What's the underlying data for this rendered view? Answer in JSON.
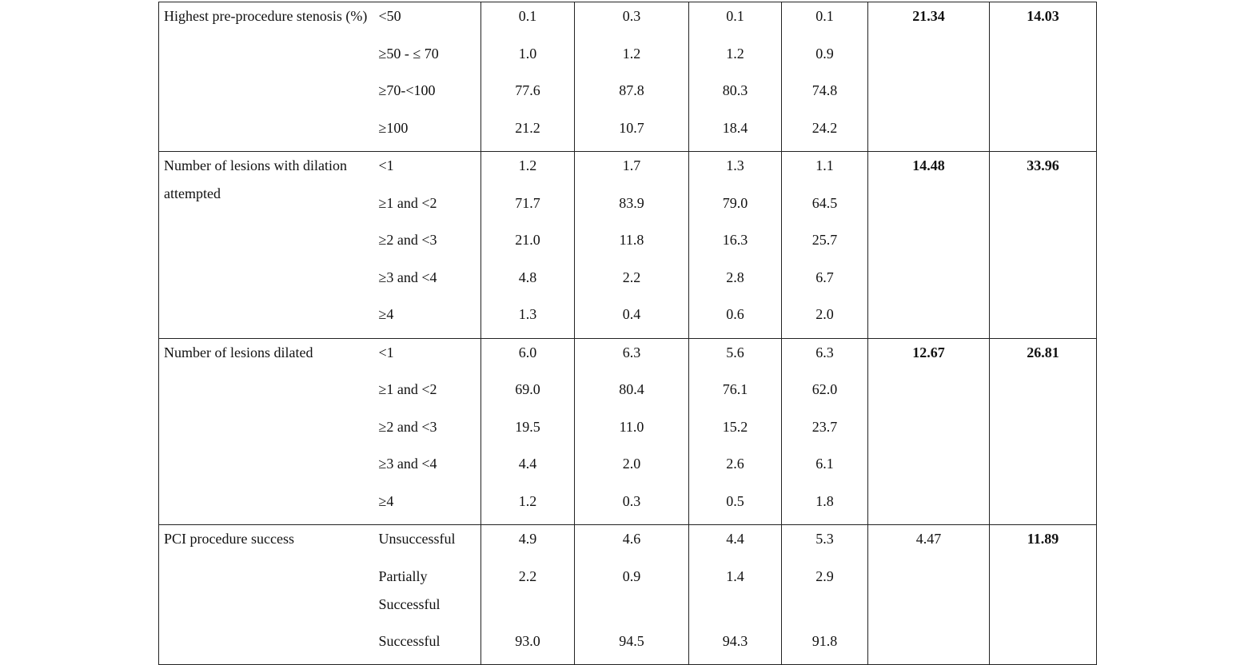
{
  "sections": [
    {
      "label": "Highest pre-procedure stenosis (%)",
      "stat1": "21.34",
      "stat1_bold": true,
      "stat2": "14.03",
      "stat2_bold": true,
      "rows": [
        {
          "level": "<50",
          "v": [
            "0.1",
            "0.3",
            "0.1",
            "0.1"
          ]
        },
        {
          "level": "≥50 - ≤ 70",
          "v": [
            "1.0",
            "1.2",
            "1.2",
            "0.9"
          ]
        },
        {
          "level": "≥70-<100",
          "v": [
            "77.6",
            "87.8",
            "80.3",
            "74.8"
          ]
        },
        {
          "level": "≥100",
          "v": [
            "21.2",
            "10.7",
            "18.4",
            "24.2"
          ]
        }
      ]
    },
    {
      "label": "Number of lesions with dilation attempted",
      "stat1": "14.48",
      "stat1_bold": true,
      "stat2": "33.96",
      "stat2_bold": true,
      "rows": [
        {
          "level": "<1",
          "v": [
            "1.2",
            "1.7",
            "1.3",
            "1.1"
          ]
        },
        {
          "level": "≥1 and <2",
          "v": [
            "71.7",
            "83.9",
            "79.0",
            "64.5"
          ]
        },
        {
          "level": "≥2 and <3",
          "v": [
            "21.0",
            "11.8",
            "16.3",
            "25.7"
          ]
        },
        {
          "level": "≥3 and <4",
          "v": [
            "4.8",
            "2.2",
            "2.8",
            "6.7"
          ]
        },
        {
          "level": "≥4",
          "v": [
            "1.3",
            "0.4",
            "0.6",
            "2.0"
          ]
        }
      ]
    },
    {
      "label": "Number of lesions dilated",
      "stat1": "12.67",
      "stat1_bold": true,
      "stat2": "26.81",
      "stat2_bold": true,
      "rows": [
        {
          "level": "<1",
          "v": [
            "6.0",
            "6.3",
            "5.6",
            "6.3"
          ]
        },
        {
          "level": "≥1 and <2",
          "v": [
            "69.0",
            "80.4",
            "76.1",
            "62.0"
          ]
        },
        {
          "level": "≥2 and <3",
          "v": [
            "19.5",
            "11.0",
            "15.2",
            "23.7"
          ]
        },
        {
          "level": "≥3 and <4",
          "v": [
            "4.4",
            "2.0",
            "2.6",
            "6.1"
          ]
        },
        {
          "level": "≥4",
          "v": [
            "1.2",
            "0.3",
            "0.5",
            "1.8"
          ]
        }
      ]
    },
    {
      "label": "PCI procedure success",
      "stat1": "4.47",
      "stat1_bold": false,
      "stat2": "11.89",
      "stat2_bold": true,
      "rows": [
        {
          "level": "Unsuccessful",
          "v": [
            "4.9",
            "4.6",
            "4.4",
            "5.3"
          ]
        },
        {
          "level": "Partially Successful",
          "v": [
            "2.2",
            "0.9",
            "1.4",
            "2.9"
          ],
          "tall": true
        },
        {
          "level": "Successful",
          "v": [
            "93.0",
            "94.5",
            "94.3",
            "91.8"
          ]
        }
      ]
    }
  ]
}
